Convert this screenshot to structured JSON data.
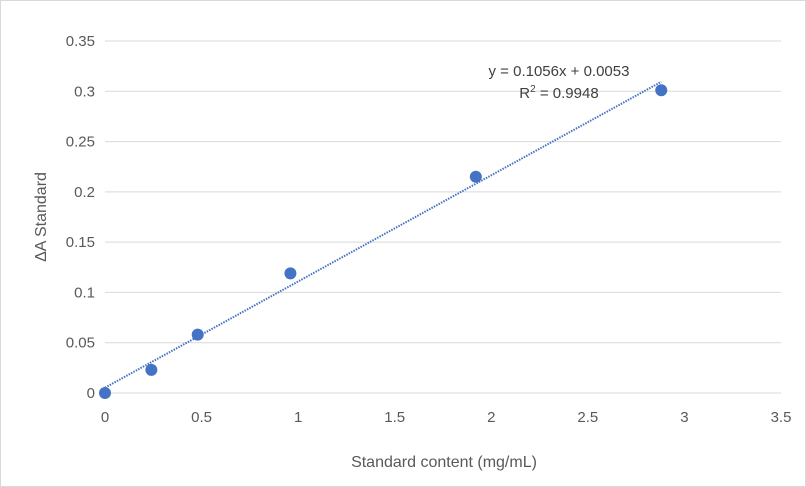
{
  "chart_data": {
    "type": "scatter",
    "title": "",
    "xlabel": "Standard content (mg/mL)",
    "ylabel": "ΔA Standard",
    "xlim": [
      0,
      3.5
    ],
    "ylim": [
      0,
      0.35
    ],
    "x_ticks": [
      0,
      0.5,
      1,
      1.5,
      2,
      2.5,
      3,
      3.5
    ],
    "y_ticks": [
      0,
      0.05,
      0.1,
      0.15,
      0.2,
      0.25,
      0.3,
      0.35
    ],
    "x_tick_labels": [
      "0",
      "0.5",
      "1",
      "1.5",
      "2",
      "2.5",
      "3",
      "3.5"
    ],
    "y_tick_labels": [
      "0",
      "0.05",
      "0.1",
      "0.15",
      "0.2",
      "0.25",
      "0.3",
      "0.35"
    ],
    "grid": "horizontal",
    "legend": "none",
    "series": [
      {
        "points": [
          {
            "x": 0,
            "y": 0
          },
          {
            "x": 0.24,
            "y": 0.023
          },
          {
            "x": 0.48,
            "y": 0.058
          },
          {
            "x": 0.96,
            "y": 0.119
          },
          {
            "x": 1.92,
            "y": 0.215
          },
          {
            "x": 2.88,
            "y": 0.301
          }
        ],
        "color": "#4472c4"
      }
    ],
    "trendline": {
      "type": "linear",
      "slope": 0.1056,
      "intercept": 0.0053,
      "x_range": [
        0,
        2.88
      ],
      "color": "#4472c4",
      "equation": "y = 0.1056x + 0.0053",
      "r2_label": "R",
      "r2_exponent": "2",
      "r2_value": " = 0.9948"
    }
  },
  "colors": {
    "marker": "#4472c4",
    "grid": "#d9d9d9",
    "text": "#595959"
  }
}
